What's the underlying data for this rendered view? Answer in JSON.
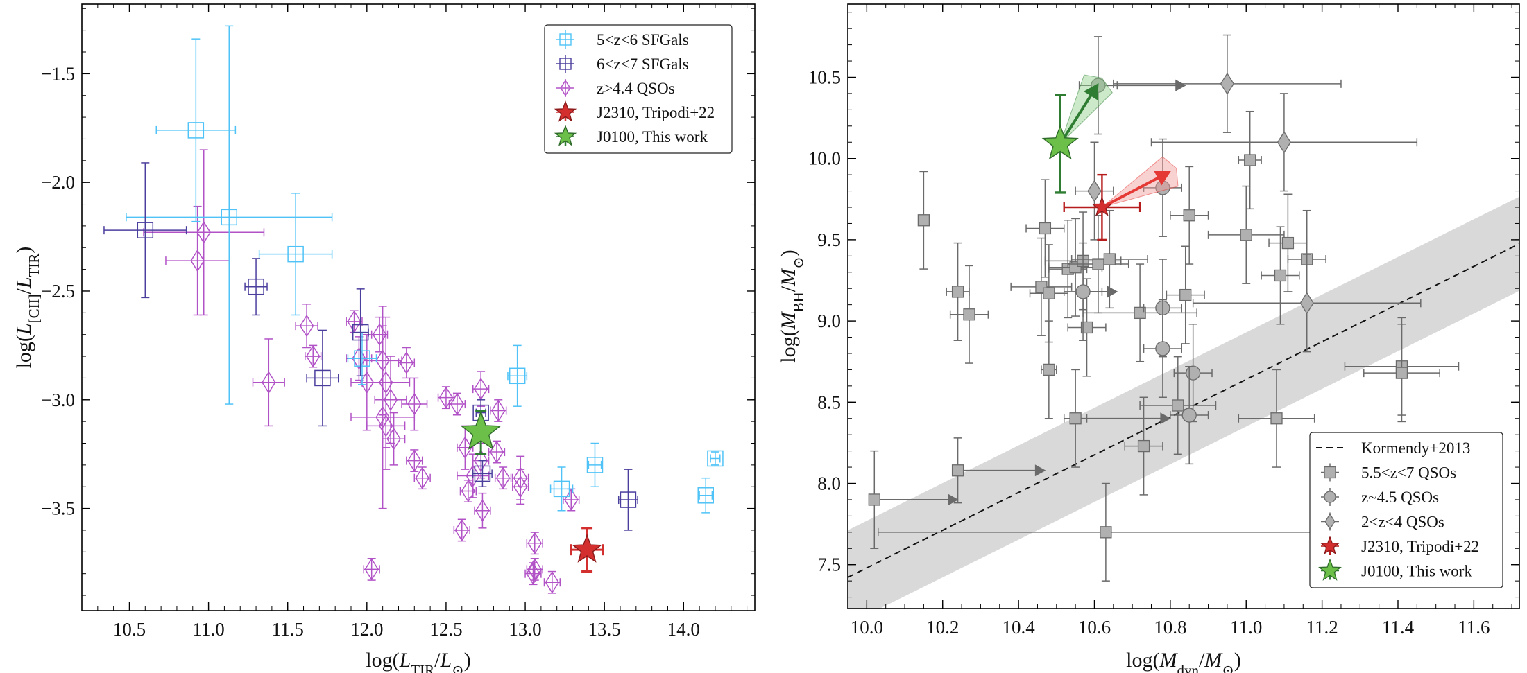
{
  "chart_data": [
    {
      "type": "scatter",
      "title": "",
      "xlabel": "log(L_TIR/L_⊙)",
      "ylabel": "log(L_[CII]/L_TIR)",
      "xlim": [
        10.2,
        14.45
      ],
      "ylim": [
        -3.97,
        -1.18
      ],
      "xticks": [
        10.5,
        11.0,
        11.5,
        12.0,
        12.5,
        13.0,
        13.5,
        14.0
      ],
      "xtick_labels": [
        "10.5",
        "11.0",
        "11.5",
        "12.0",
        "12.5",
        "13.0",
        "13.5",
        "14.0"
      ],
      "yticks": [
        -1.5,
        -2.0,
        -2.5,
        -3.0,
        -3.5
      ],
      "ytick_labels": [
        "−1.5",
        "−2.0",
        "−2.5",
        "−3.0",
        "−3.5"
      ],
      "legend_position": "top-right",
      "legend": [
        "5<z<6 SFGals",
        "6<z<7 SFGals",
        "z>4.4 QSOs",
        "J2310, Tripodi+22",
        "J0100, This work"
      ],
      "colors": {
        "sfg56": "#4fc3f7",
        "sfg67": "#4b3f9e",
        "qso": "#b252c7",
        "j2310": "#d32f2f",
        "j0100": "#2e7d32",
        "j0100_fill": "#6cc04a"
      },
      "series": [
        {
          "name": "5<z<6 SFGals",
          "marker": "square-open",
          "points": [
            {
              "x": 10.92,
              "y": -1.76,
              "xerr": 0.25,
              "yerr": 0.42
            },
            {
              "x": 11.13,
              "y": -2.16,
              "xerr": 0.65,
              "yerr_up": 0.88,
              "yerr_low": 0.86
            },
            {
              "x": 11.55,
              "y": -2.33,
              "xerr": 0.23,
              "yerr": 0.28
            },
            {
              "x": 11.97,
              "y": -2.81,
              "xerr": 0.09,
              "yerr": 0.12
            },
            {
              "x": 12.95,
              "y": -2.89,
              "xerr": 0.06,
              "yerr": 0.14
            },
            {
              "x": 13.23,
              "y": -3.41,
              "xerr": 0.07,
              "yerr": 0.1
            },
            {
              "x": 13.44,
              "y": -3.3,
              "xerr": 0.04,
              "yerr": 0.1
            },
            {
              "x": 14.14,
              "y": -3.44,
              "xerr": 0.04,
              "yerr": 0.08
            },
            {
              "x": 14.2,
              "y": -3.27,
              "xerr": 0.03,
              "yerr": 0.03
            }
          ]
        },
        {
          "name": "6<z<7 SFGals",
          "marker": "square-open",
          "points": [
            {
              "x": 10.6,
              "y": -2.22,
              "xerr": 0.26,
              "yerr": 0.31
            },
            {
              "x": 11.3,
              "y": -2.48,
              "xerr": 0.07,
              "yerr": 0.13
            },
            {
              "x": 11.72,
              "y": -2.9,
              "xerr": 0.1,
              "yerr": 0.22
            },
            {
              "x": 11.96,
              "y": -2.69,
              "xerr": 0.05,
              "yerr": 0.2
            },
            {
              "x": 12.72,
              "y": -3.06,
              "xerr": 0.03,
              "yerr": 0.06
            },
            {
              "x": 12.73,
              "y": -3.34,
              "xerr": 0.06,
              "yerr": 0.06
            },
            {
              "x": 13.65,
              "y": -3.46,
              "xerr": 0.06,
              "yerr": 0.14
            }
          ]
        },
        {
          "name": "z>4.4 QSOs",
          "marker": "diamond-open",
          "points": [
            {
              "x": 10.97,
              "y": -2.23,
              "xerr": 0.38,
              "yerr": 0.38
            },
            {
              "x": 10.93,
              "y": -2.36,
              "xerr": 0.2,
              "yerr": 0.25
            },
            {
              "x": 11.38,
              "y": -2.92,
              "xerr": 0.1,
              "yerr": 0.2
            },
            {
              "x": 11.62,
              "y": -2.66,
              "xerr": 0.07,
              "yerr": 0.1
            },
            {
              "x": 11.66,
              "y": -2.8,
              "xerr": 0.05,
              "yerr": 0.05
            },
            {
              "x": 11.92,
              "y": -2.64,
              "xerr": 0.05,
              "yerr": 0.05
            },
            {
              "x": 11.95,
              "y": -2.81,
              "xerr": 0.08,
              "yerr": 0.1
            },
            {
              "x": 12.0,
              "y": -2.92,
              "xerr": 0.1,
              "yerr": 0.22
            },
            {
              "x": 12.08,
              "y": -2.7,
              "xerr": 0.05,
              "yerr": 0.08
            },
            {
              "x": 12.1,
              "y": -2.82,
              "xerr": 0.12,
              "yerr": 0.25
            },
            {
              "x": 12.12,
              "y": -2.92,
              "xerr": 0.15,
              "yerr": 0.3
            },
            {
              "x": 12.1,
              "y": -3.08,
              "xerr": 0.2,
              "yerr": 0.42
            },
            {
              "x": 12.15,
              "y": -3.0,
              "xerr": 0.1,
              "yerr": 0.2
            },
            {
              "x": 12.12,
              "y": -3.12,
              "xerr": 0.12,
              "yerr": 0.2
            },
            {
              "x": 12.17,
              "y": -3.18,
              "xerr": 0.07,
              "yerr": 0.12
            },
            {
              "x": 12.25,
              "y": -2.83,
              "xerr": 0.05,
              "yerr": 0.07
            },
            {
              "x": 12.3,
              "y": -3.02,
              "xerr": 0.08,
              "yerr": 0.12
            },
            {
              "x": 12.3,
              "y": -3.28,
              "xerr": 0.05,
              "yerr": 0.05
            },
            {
              "x": 12.35,
              "y": -3.36,
              "xerr": 0.05,
              "yerr": 0.05
            },
            {
              "x": 12.5,
              "y": -2.99,
              "xerr": 0.05,
              "yerr": 0.05
            },
            {
              "x": 12.57,
              "y": -3.02,
              "xerr": 0.05,
              "yerr": 0.05
            },
            {
              "x": 12.62,
              "y": -3.22,
              "xerr": 0.05,
              "yerr": 0.1
            },
            {
              "x": 12.67,
              "y": -3.35,
              "xerr": 0.1,
              "yerr": 0.1
            },
            {
              "x": 12.72,
              "y": -2.95,
              "xerr": 0.05,
              "yerr": 0.08
            },
            {
              "x": 12.72,
              "y": -3.28,
              "xerr": 0.05,
              "yerr": 0.08
            },
            {
              "x": 12.73,
              "y": -3.51,
              "xerr": 0.05,
              "yerr": 0.08
            },
            {
              "x": 12.82,
              "y": -3.24,
              "xerr": 0.05,
              "yerr": 0.05
            },
            {
              "x": 12.83,
              "y": -3.05,
              "xerr": 0.05,
              "yerr": 0.05
            },
            {
              "x": 12.86,
              "y": -3.36,
              "xerr": 0.05,
              "yerr": 0.05
            },
            {
              "x": 12.97,
              "y": -3.36,
              "xerr": 0.05,
              "yerr": 0.1
            },
            {
              "x": 12.97,
              "y": -3.4,
              "xerr": 0.05,
              "yerr": 0.08
            },
            {
              "x": 13.06,
              "y": -3.66,
              "xerr": 0.05,
              "yerr": 0.05
            },
            {
              "x": 13.05,
              "y": -3.8,
              "xerr": 0.05,
              "yerr": 0.05
            },
            {
              "x": 13.06,
              "y": -3.78,
              "xerr": 0.05,
              "yerr": 0.05
            },
            {
              "x": 13.17,
              "y": -3.84,
              "xerr": 0.05,
              "yerr": 0.05
            },
            {
              "x": 13.29,
              "y": -3.46,
              "xerr": 0.05,
              "yerr": 0.05
            },
            {
              "x": 12.03,
              "y": -3.78,
              "xerr": 0.05,
              "yerr": 0.05
            },
            {
              "x": 12.6,
              "y": -3.6,
              "xerr": 0.05,
              "yerr": 0.05
            },
            {
              "x": 12.64,
              "y": -3.42,
              "xerr": 0.05,
              "yerr": 0.05
            }
          ]
        },
        {
          "name": "J2310, Tripodi+22",
          "marker": "star",
          "points": [
            {
              "x": 13.39,
              "y": -3.69,
              "xerr": 0.1,
              "yerr": 0.1
            }
          ]
        },
        {
          "name": "J0100, This work",
          "marker": "star",
          "points": [
            {
              "x": 12.72,
              "y": -3.15,
              "xerr": 0.04,
              "yerr": 0.1
            }
          ]
        }
      ]
    },
    {
      "type": "scatter",
      "title": "",
      "xlabel": "log(M_dyn/M_⊙)",
      "ylabel": "log(M_BH/M_⊙)",
      "xlim": [
        9.95,
        11.72
      ],
      "ylim": [
        7.23,
        10.95
      ],
      "xticks": [
        10.0,
        10.2,
        10.4,
        10.6,
        10.8,
        11.0,
        11.2,
        11.4,
        11.6
      ],
      "xtick_labels": [
        "10.0",
        "10.2",
        "10.4",
        "10.6",
        "10.8",
        "11.0",
        "11.2",
        "11.4",
        "11.6"
      ],
      "yticks": [
        7.5,
        8.0,
        8.5,
        9.0,
        9.5,
        10.0,
        10.5
      ],
      "ytick_labels": [
        "7.5",
        "8.0",
        "8.5",
        "9.0",
        "9.5",
        "10.0",
        "10.5"
      ],
      "legend_position": "bottom-right",
      "legend": [
        "Kormendy+2013",
        "5.5<z<7 QSOs",
        "z~4.5 QSOs",
        "2<z<4 QSOs",
        "J2310, Tripodi+22",
        "J0100, This work"
      ],
      "relation": {
        "name": "Kormendy+2013",
        "slope": 1.16,
        "intercept": -4.12,
        "scatter": 0.29
      },
      "colors": {
        "qso": "#b0b0b0",
        "qso_edge": "#6a6a6a",
        "band": "#d9d9d9",
        "j2310": "#d32f2f",
        "j0100": "#2e7d32",
        "j0100_fill": "#6cc04a"
      },
      "series": [
        {
          "name": "5.5<z<7 QSOs",
          "marker": "square",
          "points": [
            {
              "x": 10.02,
              "y": 7.9,
              "xerr": 0.0,
              "yerr": 0.3,
              "arrow_to": 10.24
            },
            {
              "x": 10.15,
              "y": 9.62,
              "xerr": 0.01,
              "yerr": 0.3
            },
            {
              "x": 10.24,
              "y": 9.18,
              "xerr": 0.03,
              "yerr": 0.3
            },
            {
              "x": 10.27,
              "y": 9.04,
              "xerr": 0.05,
              "yerr": 0.3
            },
            {
              "x": 10.24,
              "y": 8.08,
              "xerr": 0.0,
              "yerr": 0.2,
              "arrow_to": 10.47
            },
            {
              "x": 10.47,
              "y": 9.57,
              "xerr": 0.05,
              "yerr": 0.3
            },
            {
              "x": 10.46,
              "y": 9.21,
              "xerr": 0.08,
              "yerr": 0.3
            },
            {
              "x": 10.48,
              "y": 9.17,
              "xerr": 0.05,
              "yerr": 0.3
            },
            {
              "x": 10.48,
              "y": 8.7,
              "xerr": 0.02,
              "yerr": 0.3
            },
            {
              "x": 10.53,
              "y": 9.32,
              "xerr": 0.05,
              "yerr": 0.3
            },
            {
              "x": 10.55,
              "y": 9.33,
              "xerr": 0.07,
              "yerr": 0.3
            },
            {
              "x": 10.57,
              "y": 9.37,
              "xerr": 0.1,
              "yerr": 0.3
            },
            {
              "x": 10.58,
              "y": 8.96,
              "xerr": 0.05,
              "yerr": 0.3
            },
            {
              "x": 10.61,
              "y": 9.35,
              "xerr": 0.08,
              "yerr": 0.3
            },
            {
              "x": 10.55,
              "y": 8.4,
              "xerr": 0.03,
              "yerr": 0.3,
              "arrow_to": 10.8
            },
            {
              "x": 10.64,
              "y": 9.38,
              "xerr": 0.1,
              "yerr": 0.3
            },
            {
              "x": 10.63,
              "y": 7.7,
              "xerr": 0.6,
              "yerr": 0.3
            },
            {
              "x": 10.72,
              "y": 9.05,
              "xerr": 0.15,
              "yerr": 0.3
            },
            {
              "x": 10.73,
              "y": 8.23,
              "xerr": 0.05,
              "yerr": 0.3
            },
            {
              "x": 10.82,
              "y": 8.48,
              "xerr": 0.1,
              "yerr": 0.3
            },
            {
              "x": 10.84,
              "y": 9.16,
              "xerr": 0.05,
              "yerr": 0.3
            },
            {
              "x": 10.85,
              "y": 9.65,
              "xerr": 0.05,
              "yerr": 0.3
            },
            {
              "x": 11.0,
              "y": 9.53,
              "xerr": 0.1,
              "yerr": 0.3
            },
            {
              "x": 11.01,
              "y": 9.99,
              "xerr": 0.03,
              "yerr": 0.3
            },
            {
              "x": 11.08,
              "y": 8.4,
              "xerr": 0.1,
              "yerr": 0.3
            },
            {
              "x": 11.09,
              "y": 9.28,
              "xerr": 0.05,
              "yerr": 0.3
            },
            {
              "x": 11.11,
              "y": 9.48,
              "xerr": 0.05,
              "yerr": 0.3
            },
            {
              "x": 11.16,
              "y": 9.38,
              "xerr": 0.05,
              "yerr": 0.3
            },
            {
              "x": 11.41,
              "y": 8.72,
              "xerr": 0.15,
              "yerr": 0.3
            },
            {
              "x": 11.41,
              "y": 8.68,
              "xerr": 0.1,
              "yerr": 0.3
            }
          ]
        },
        {
          "name": "z~4.5 QSOs",
          "marker": "circle",
          "points": [
            {
              "x": 10.61,
              "y": 10.45,
              "xerr": 0.05,
              "yerr": 0.3,
              "arrow_to": 10.84
            },
            {
              "x": 10.57,
              "y": 9.18,
              "xerr": 0.05,
              "yerr": 0.3,
              "arrow_to": 10.66
            },
            {
              "x": 10.78,
              "y": 9.82,
              "xerr": 0.05,
              "yerr": 0.3
            },
            {
              "x": 10.78,
              "y": 9.08,
              "xerr": 0.05,
              "yerr": 0.3
            },
            {
              "x": 10.78,
              "y": 8.83,
              "xerr": 0.05,
              "yerr": 0.3
            },
            {
              "x": 10.86,
              "y": 8.68,
              "xerr": 0.05,
              "yerr": 0.3
            },
            {
              "x": 10.85,
              "y": 8.42,
              "xerr": 0.05,
              "yerr": 0.3
            }
          ]
        },
        {
          "name": "2<z<4 QSOs",
          "marker": "diamond",
          "points": [
            {
              "x": 10.95,
              "y": 10.46,
              "xerr": 0.3,
              "yerr": 0.3
            },
            {
              "x": 11.1,
              "y": 10.1,
              "xerr": 0.35,
              "yerr": 0.3
            },
            {
              "x": 10.6,
              "y": 9.8,
              "xerr": 0.05,
              "yerr": 0.3
            },
            {
              "x": 11.16,
              "y": 9.11,
              "xerr": 0.3,
              "yerr": 0.3
            }
          ]
        },
        {
          "name": "J2310, Tripodi+22",
          "marker": "star",
          "points": [
            {
              "x": 10.62,
              "y": 9.7,
              "xerr": 0.1,
              "yerr": 0.2,
              "shift_to": [
                10.8,
                9.92
              ]
            }
          ]
        },
        {
          "name": "J0100, This work",
          "marker": "star",
          "points": [
            {
              "x": 10.51,
              "y": 10.09,
              "xerr": 0.01,
              "yerr": 0.3,
              "shift_to": [
                10.61,
                10.46
              ]
            }
          ]
        }
      ]
    }
  ]
}
